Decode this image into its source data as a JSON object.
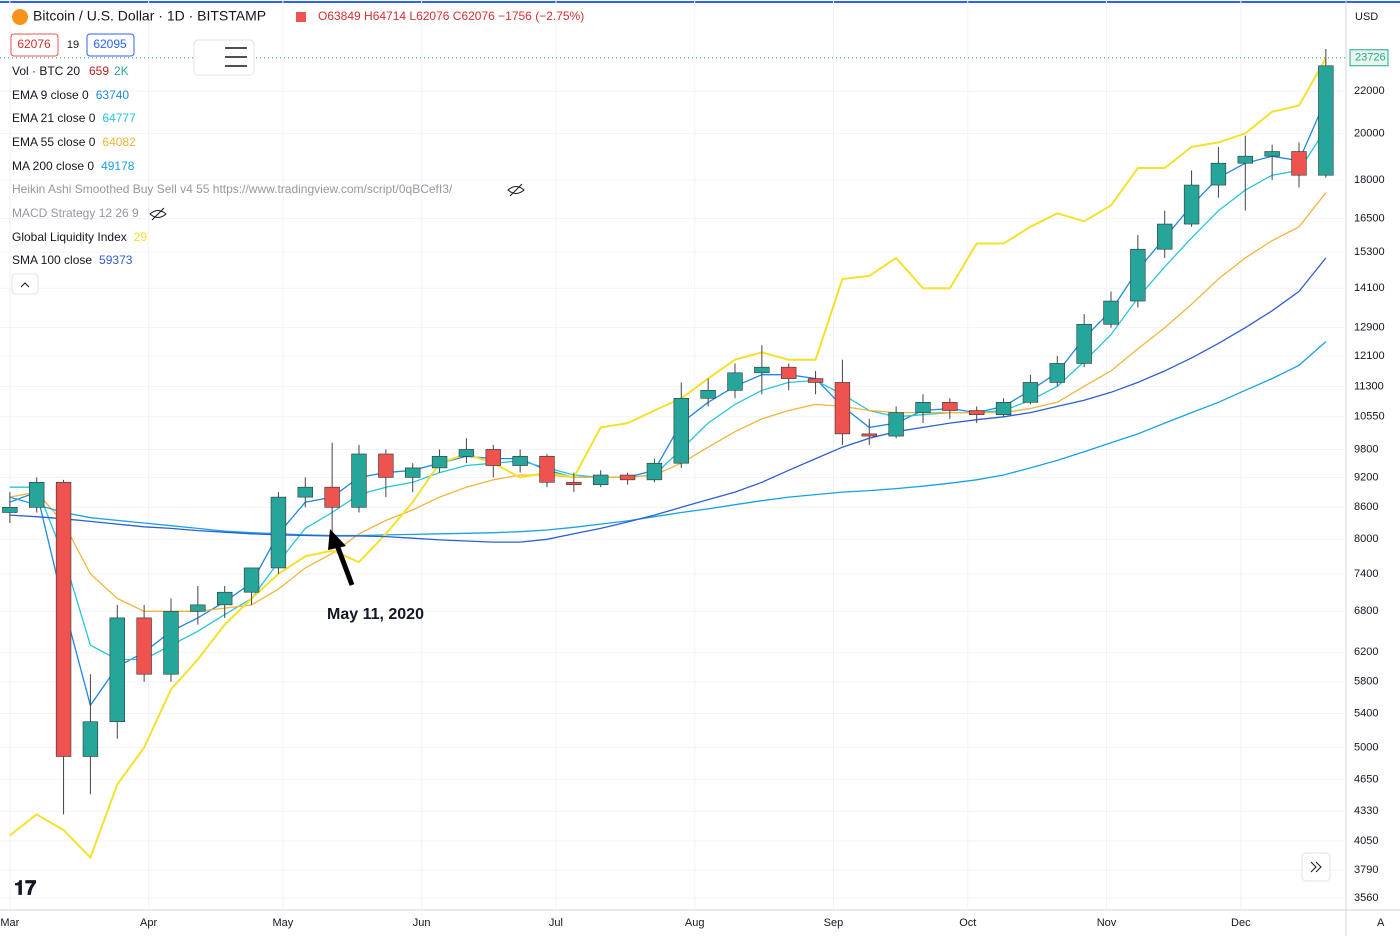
{
  "chart_data": {
    "type": "candlestick",
    "symbol": "Bitcoin / U.S. Dollar · 1D · BITSTAMP",
    "ohlc_readout": "O63849 H64714 L62076 C62076 −1756 (−2.75%)",
    "bid": 62076,
    "spread": 19,
    "ask": 62095,
    "volume_legend": {
      "name": "Vol · BTC 20",
      "values": [
        659,
        "2K"
      ]
    },
    "hidden_indicators": [
      "Heikin Ashi Smoothed Buy Sell v4 55 https://www.tradingview.com/script/0qBCefI3/",
      "MACD Strategy 12 26 9"
    ],
    "currency": "USD",
    "scale_mode": "A",
    "annotation": "May 11, 2020",
    "last_price": 23726,
    "up_color": "#26a69a",
    "down_color": "#ef5350",
    "log_scale": true,
    "xlim": [
      -2.2,
      298.5
    ],
    "xticks": [
      {
        "value": 0,
        "label": "Mar"
      },
      {
        "value": 31,
        "label": "Apr"
      },
      {
        "value": 61,
        "label": "May"
      },
      {
        "value": 92,
        "label": "Jun"
      },
      {
        "value": 122,
        "label": "Jul"
      },
      {
        "value": 153,
        "label": "Aug"
      },
      {
        "value": 184,
        "label": "Sep"
      },
      {
        "value": 214,
        "label": "Oct"
      },
      {
        "value": 245,
        "label": "Nov"
      },
      {
        "value": 275,
        "label": "Dec"
      }
    ],
    "ylim": [
      3465,
      27030
    ],
    "yticks": [
      3560,
      3790,
      4050,
      4330,
      4650,
      5000,
      5400,
      5800,
      6200,
      6800,
      7400,
      8000,
      8600,
      9200,
      9800,
      10550,
      11300,
      12100,
      12900,
      14100,
      15300,
      16500,
      18000,
      20000,
      22000
    ],
    "x": [
      0,
      6,
      12,
      18,
      24,
      30,
      36,
      42,
      48,
      54,
      60,
      66,
      72,
      78,
      84,
      90,
      96,
      102,
      108,
      114,
      120,
      126,
      132,
      138,
      144,
      150,
      156,
      162,
      168,
      174,
      180,
      186,
      192,
      198,
      204,
      210,
      216,
      222,
      228,
      234,
      240,
      246,
      252,
      258,
      264,
      270,
      276,
      282,
      288,
      294
    ],
    "open": [
      8500,
      8600,
      9100,
      4900,
      5300,
      6700,
      5900,
      6800,
      6900,
      7100,
      7500,
      8800,
      9000,
      8600,
      9700,
      9200,
      9400,
      9650,
      9800,
      9450,
      9650,
      9100,
      9050,
      9250,
      9150,
      9500,
      11000,
      11200,
      11650,
      11800,
      11500,
      11400,
      10150,
      10100,
      10650,
      10900,
      10700,
      10600,
      10900,
      11400,
      11900,
      13000,
      13700,
      15400,
      16300,
      17800,
      18700,
      19000,
      19200,
      18200
    ],
    "high": [
      8900,
      9200,
      9150,
      5900,
      6900,
      6900,
      7000,
      7200,
      7200,
      7500,
      8900,
      9200,
      9950,
      9900,
      9800,
      9500,
      9800,
      10050,
      9900,
      9800,
      9700,
      9300,
      9350,
      9300,
      9600,
      11400,
      11500,
      11900,
      12400,
      11900,
      11700,
      12000,
      10500,
      10800,
      11100,
      11000,
      10800,
      11000,
      11600,
      12100,
      13300,
      14000,
      15900,
      16800,
      18400,
      19400,
      19900,
      19500,
      19600,
      24200
    ],
    "low": [
      8300,
      8500,
      4300,
      4500,
      5100,
      5800,
      5800,
      6600,
      6700,
      6900,
      7400,
      8600,
      8100,
      8500,
      8800,
      8900,
      9300,
      9500,
      9200,
      9300,
      9000,
      8900,
      9000,
      9050,
      9100,
      9400,
      10800,
      11000,
      11100,
      11200,
      11100,
      9900,
      9900,
      10050,
      10400,
      10500,
      10400,
      10550,
      10850,
      11300,
      11800,
      12900,
      13500,
      15100,
      16200,
      17300,
      16800,
      18000,
      17700,
      18100
    ],
    "close": [
      8600,
      9100,
      4900,
      5300,
      6700,
      5900,
      6800,
      6900,
      7100,
      7500,
      8800,
      9000,
      8600,
      9700,
      9200,
      9400,
      9650,
      9800,
      9450,
      9650,
      9100,
      9050,
      9250,
      9150,
      9500,
      11000,
      11200,
      11650,
      11800,
      11500,
      11400,
      10150,
      10100,
      10650,
      10900,
      10700,
      10600,
      10900,
      11400,
      11900,
      13000,
      13700,
      15400,
      16300,
      17800,
      18700,
      19000,
      19200,
      18200,
      23300
    ],
    "series": [
      {
        "name": "EMA 9 close 0",
        "legend_value": 63740,
        "color": "#1e88e5",
        "values": [
          8700,
          8900,
          6900,
          5500,
          6000,
          6200,
          6500,
          6700,
          6950,
          7250,
          8100,
          8700,
          8800,
          9200,
          9300,
          9350,
          9500,
          9650,
          9600,
          9600,
          9350,
          9200,
          9200,
          9200,
          9350,
          10400,
          10900,
          11300,
          11600,
          11600,
          11500,
          10800,
          10300,
          10400,
          10700,
          10750,
          10650,
          10800,
          11200,
          11650,
          12600,
          13400,
          14700,
          15800,
          17000,
          18100,
          18700,
          19000,
          18800,
          21600
        ]
      },
      {
        "name": "EMA 21 close 0",
        "legend_value": 64777,
        "color": "#26c6da",
        "values": [
          9000,
          9000,
          7700,
          6300,
          6100,
          6100,
          6300,
          6500,
          6750,
          7000,
          7600,
          8200,
          8500,
          8850,
          9000,
          9100,
          9300,
          9450,
          9500,
          9550,
          9400,
          9250,
          9200,
          9200,
          9250,
          9800,
          10400,
          10850,
          11200,
          11400,
          11450,
          11100,
          10700,
          10550,
          10600,
          10650,
          10650,
          10700,
          10950,
          11300,
          11950,
          12700,
          13800,
          14800,
          15800,
          16800,
          17600,
          18200,
          18400,
          20200
        ]
      },
      {
        "name": "EMA 55 close 0",
        "legend_value": 64082,
        "color": "#f2b43c",
        "values": [
          8800,
          8900,
          8300,
          7400,
          7000,
          6800,
          6800,
          6800,
          6850,
          6900,
          7150,
          7500,
          7750,
          8100,
          8350,
          8550,
          8800,
          9000,
          9150,
          9250,
          9250,
          9200,
          9200,
          9200,
          9250,
          9500,
          9850,
          10200,
          10500,
          10700,
          10850,
          10800,
          10700,
          10650,
          10650,
          10650,
          10650,
          10650,
          10750,
          10900,
          11300,
          11700,
          12300,
          12900,
          13600,
          14400,
          15100,
          15700,
          16200,
          17500
        ]
      },
      {
        "name": "MA 200 close 0",
        "legend_value": 49178,
        "color": "#1aa1e6",
        "values": [
          8800,
          8650,
          8500,
          8400,
          8350,
          8300,
          8250,
          8200,
          8150,
          8120,
          8100,
          8080,
          8070,
          8070,
          8080,
          8090,
          8100,
          8110,
          8120,
          8140,
          8170,
          8220,
          8280,
          8340,
          8420,
          8500,
          8570,
          8650,
          8730,
          8800,
          8850,
          8900,
          8930,
          8970,
          9020,
          9080,
          9150,
          9250,
          9400,
          9560,
          9750,
          9950,
          10150,
          10400,
          10650,
          10900,
          11200,
          11500,
          11850,
          12500
        ]
      },
      {
        "name": "Global Liquidity Index",
        "legend_value": 29,
        "color": "#f5e12a",
        "values": [
          4100,
          4300,
          4150,
          3900,
          4600,
          5000,
          5700,
          6100,
          6600,
          7000,
          7400,
          7700,
          7800,
          7600,
          8100,
          8700,
          9500,
          9700,
          9500,
          9200,
          9300,
          9200,
          10300,
          10400,
          10700,
          11000,
          11500,
          12000,
          12200,
          12000,
          12000,
          14400,
          14500,
          15100,
          14100,
          14100,
          15600,
          15600,
          16200,
          16700,
          16400,
          17000,
          18500,
          18500,
          19400,
          19600,
          20000,
          21000,
          21300,
          23700
        ]
      },
      {
        "name": "SMA 100 close",
        "legend_value": 59373,
        "color": "#2d5fcf",
        "values": [
          8450,
          8420,
          8380,
          8330,
          8280,
          8230,
          8200,
          8160,
          8130,
          8100,
          8080,
          8070,
          8060,
          8060,
          8050,
          8020,
          7990,
          7970,
          7950,
          7950,
          8000,
          8100,
          8200,
          8320,
          8450,
          8600,
          8750,
          8900,
          9100,
          9350,
          9600,
          9850,
          10050,
          10200,
          10300,
          10400,
          10480,
          10550,
          10650,
          10800,
          10950,
          11150,
          11400,
          11700,
          12050,
          12450,
          12900,
          13400,
          14000,
          15100
        ]
      }
    ]
  }
}
